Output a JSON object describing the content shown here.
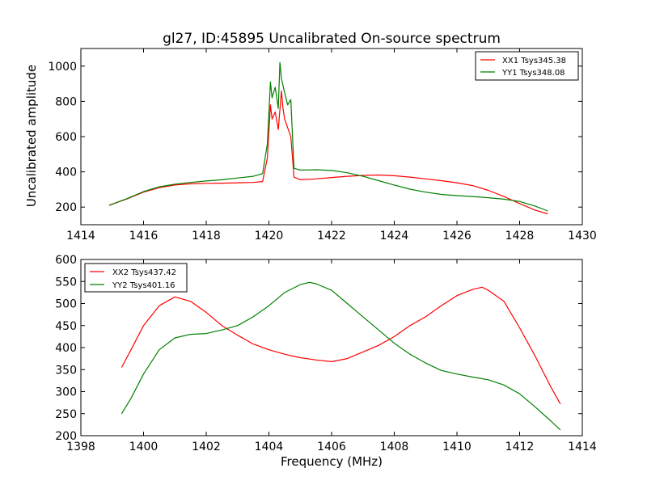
{
  "chart_data": [
    {
      "type": "line",
      "title": "gl27, ID:45895 Uncalibrated On-source spectrum",
      "xlabel": "",
      "ylabel": "Uncalibrated amplitude",
      "xlim": [
        1414,
        1430
      ],
      "ylim": [
        100,
        1100
      ],
      "xticks": [
        "1414",
        "1416",
        "1418",
        "1420",
        "1422",
        "1424",
        "1426",
        "1428",
        "1430"
      ],
      "yticks": [
        "200",
        "400",
        "600",
        "800",
        "1000"
      ],
      "legend_position": "top-right",
      "series": [
        {
          "name": "XX1 Tsys345.38",
          "color": "#ff0000",
          "x": [
            1414.9,
            1415.5,
            1416.0,
            1416.5,
            1417.0,
            1417.5,
            1418.0,
            1418.5,
            1419.0,
            1419.5,
            1419.8,
            1419.95,
            1420.05,
            1420.1,
            1420.2,
            1420.3,
            1420.4,
            1420.45,
            1420.5,
            1420.6,
            1420.7,
            1420.8,
            1421.0,
            1421.5,
            1422.0,
            1422.5,
            1423.0,
            1423.5,
            1424.0,
            1424.5,
            1425.0,
            1425.5,
            1426.0,
            1426.5,
            1427.0,
            1427.5,
            1428.0,
            1428.5,
            1428.9
          ],
          "y": [
            210,
            248,
            285,
            310,
            325,
            332,
            335,
            336,
            338,
            340,
            345,
            480,
            780,
            700,
            740,
            640,
            860,
            760,
            700,
            650,
            600,
            370,
            355,
            360,
            368,
            375,
            380,
            382,
            378,
            370,
            360,
            350,
            338,
            322,
            295,
            260,
            220,
            182,
            162
          ]
        },
        {
          "name": "YY1 Tsys348.08",
          "color": "#008000",
          "x": [
            1414.9,
            1415.5,
            1416.0,
            1416.5,
            1417.0,
            1417.5,
            1418.0,
            1418.5,
            1419.0,
            1419.5,
            1419.8,
            1419.95,
            1420.05,
            1420.1,
            1420.2,
            1420.3,
            1420.35,
            1420.4,
            1420.5,
            1420.6,
            1420.7,
            1420.8,
            1421.0,
            1421.5,
            1422.0,
            1422.5,
            1423.0,
            1423.5,
            1424.0,
            1424.5,
            1425.0,
            1425.5,
            1426.0,
            1426.5,
            1427.0,
            1427.5,
            1428.0,
            1428.5,
            1428.9
          ],
          "y": [
            210,
            250,
            288,
            315,
            330,
            340,
            348,
            355,
            365,
            375,
            390,
            560,
            910,
            820,
            880,
            760,
            1020,
            930,
            850,
            780,
            810,
            420,
            410,
            412,
            408,
            395,
            375,
            350,
            325,
            302,
            285,
            272,
            265,
            260,
            253,
            245,
            232,
            205,
            178
          ]
        }
      ]
    },
    {
      "type": "line",
      "title": "",
      "xlabel": "Frequency (MHz)",
      "ylabel": "",
      "xlim": [
        1398,
        1414
      ],
      "ylim": [
        200,
        600
      ],
      "xticks": [
        "1398",
        "1400",
        "1402",
        "1404",
        "1406",
        "1408",
        "1410",
        "1412",
        "1414"
      ],
      "yticks": [
        "200",
        "250",
        "300",
        "350",
        "400",
        "450",
        "500",
        "550",
        "600"
      ],
      "legend_position": "top-left",
      "series": [
        {
          "name": "XX2 Tsys437.42",
          "color": "#ff0000",
          "x": [
            1399.3,
            1399.6,
            1400.0,
            1400.5,
            1401.0,
            1401.5,
            1402.0,
            1402.5,
            1403.0,
            1403.5,
            1404.0,
            1404.5,
            1405.0,
            1405.5,
            1406.0,
            1406.5,
            1407.0,
            1407.5,
            1408.0,
            1408.5,
            1409.0,
            1409.5,
            1410.0,
            1410.5,
            1410.8,
            1411.0,
            1411.5,
            1412.0,
            1412.5,
            1413.0,
            1413.3
          ],
          "y": [
            355,
            395,
            450,
            495,
            515,
            505,
            480,
            450,
            428,
            408,
            395,
            385,
            377,
            372,
            368,
            375,
            390,
            405,
            425,
            450,
            470,
            495,
            518,
            532,
            537,
            530,
            505,
            445,
            380,
            310,
            272
          ]
        },
        {
          "name": "YY2 Tsys401.16",
          "color": "#008000",
          "x": [
            1399.3,
            1399.6,
            1400.0,
            1400.5,
            1401.0,
            1401.5,
            1402.0,
            1402.5,
            1403.0,
            1403.5,
            1404.0,
            1404.5,
            1405.0,
            1405.3,
            1405.5,
            1406.0,
            1406.5,
            1407.0,
            1407.5,
            1408.0,
            1408.5,
            1409.0,
            1409.5,
            1410.0,
            1410.5,
            1411.0,
            1411.5,
            1412.0,
            1412.5,
            1413.0,
            1413.3
          ],
          "y": [
            250,
            285,
            340,
            395,
            422,
            430,
            432,
            440,
            450,
            470,
            495,
            525,
            543,
            548,
            545,
            530,
            500,
            470,
            440,
            410,
            385,
            365,
            348,
            340,
            333,
            327,
            315,
            295,
            265,
            233,
            213
          ]
        }
      ]
    }
  ]
}
